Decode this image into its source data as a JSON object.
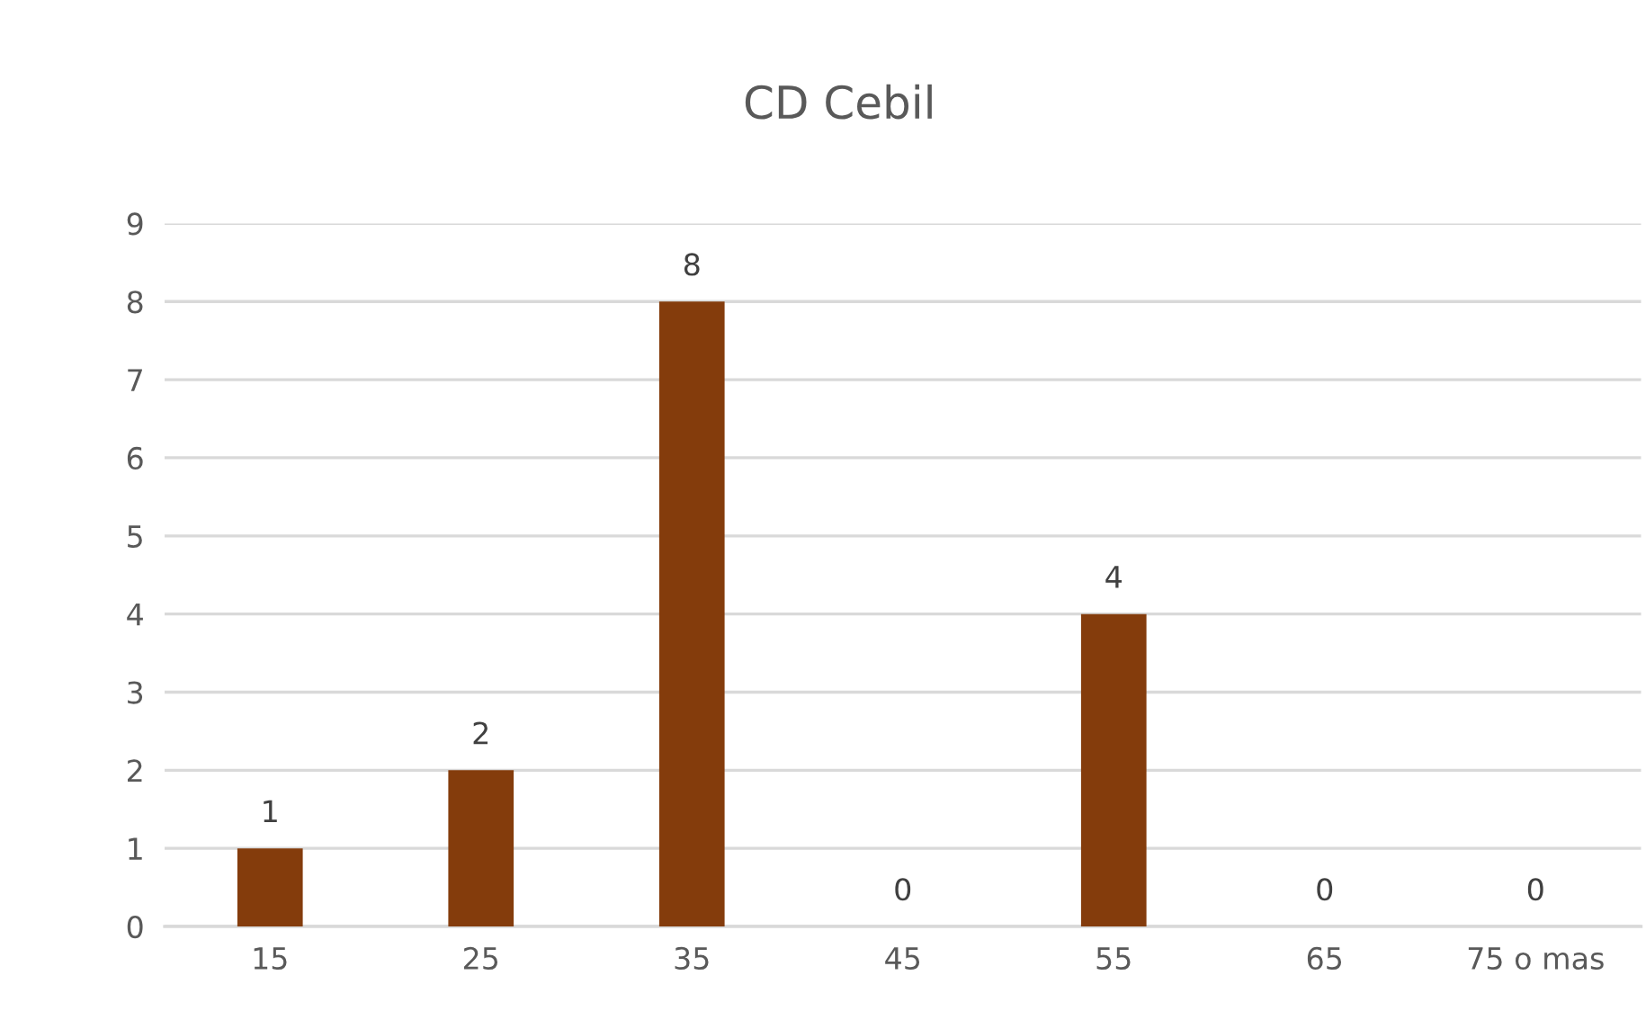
{
  "chart_data": {
    "type": "bar",
    "title": "CD Cebil",
    "categories": [
      "15",
      "25",
      "35",
      "45",
      "55",
      "65",
      "75 o mas"
    ],
    "values": [
      1,
      2,
      8,
      0,
      4,
      0,
      0
    ],
    "color": "#843c0c",
    "ylim": [
      0,
      9
    ],
    "yticks": [
      0,
      1,
      2,
      3,
      4,
      5,
      6,
      7,
      8,
      9
    ],
    "grid": "y",
    "data_labels": true
  }
}
